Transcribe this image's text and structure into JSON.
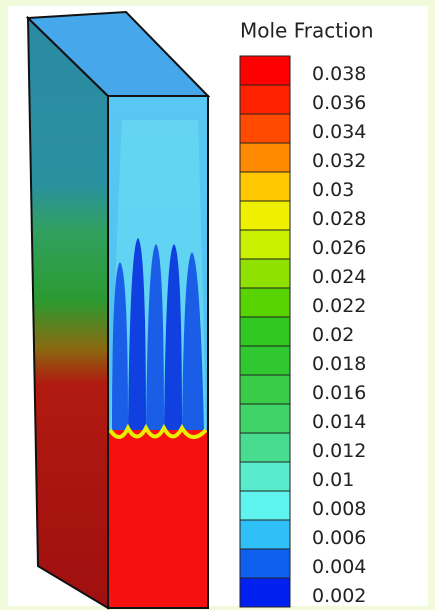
{
  "legend": {
    "title": "Mole Fraction",
    "labels": [
      0.038,
      0.036,
      0.034,
      0.032,
      0.03,
      0.028,
      0.026,
      0.024,
      0.022,
      0.02,
      0.018,
      0.016,
      0.014,
      0.012,
      0.01,
      0.008,
      0.006,
      0.004,
      0.002
    ],
    "colors": [
      "#ff0000",
      "#ff2200",
      "#ff4a00",
      "#ff8a00",
      "#ffc800",
      "#eef000",
      "#c8f000",
      "#90e000",
      "#58d400",
      "#30c820",
      "#30c830",
      "#38cc48",
      "#40d468",
      "#48dc90",
      "#58eccc",
      "#60f4ee",
      "#30c0f8",
      "#1060f0",
      "#0020f0"
    ]
  }
}
